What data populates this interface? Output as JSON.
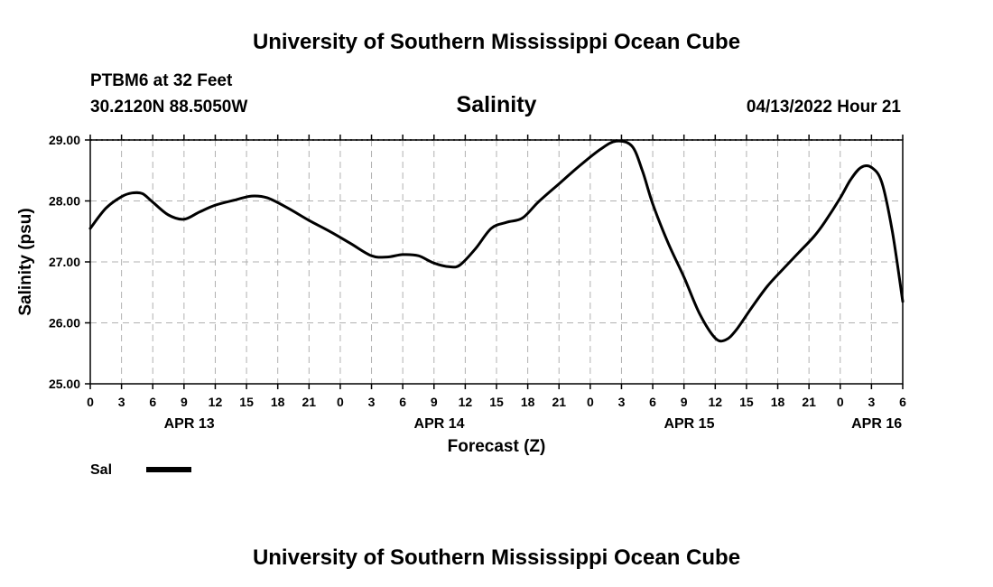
{
  "header": {
    "title": "University of Southern Mississippi Ocean Cube",
    "station": "PTBM6 at 32 Feet",
    "coords": "30.2120N  88.5050W",
    "datetime": "04/13/2022 Hour 21"
  },
  "footer": {
    "title": "University of Southern Mississippi Ocean Cube"
  },
  "legend": {
    "label": "Sal"
  },
  "colors": {
    "line": "#000000",
    "grid": "#b0b0b0",
    "axis": "#000000"
  },
  "chart_data": {
    "type": "line",
    "title": "Salinity",
    "xlabel": "Forecast (Z)",
    "ylabel": "Salinity (psu)",
    "xlim": [
      0,
      78
    ],
    "ylim": [
      25.0,
      29.0
    ],
    "grid": true,
    "legend_position": "bottom-left",
    "yticks": [
      {
        "value": 25.0,
        "label": "25.00"
      },
      {
        "value": 26.0,
        "label": "26.00"
      },
      {
        "value": 27.0,
        "label": "27.00"
      },
      {
        "value": 28.0,
        "label": "28.00"
      },
      {
        "value": 29.0,
        "label": "29.00"
      }
    ],
    "xticks": [
      {
        "value": 0,
        "label": "0"
      },
      {
        "value": 3,
        "label": "3"
      },
      {
        "value": 6,
        "label": "6"
      },
      {
        "value": 9,
        "label": "9"
      },
      {
        "value": 12,
        "label": "12"
      },
      {
        "value": 15,
        "label": "15"
      },
      {
        "value": 18,
        "label": "18"
      },
      {
        "value": 21,
        "label": "21"
      },
      {
        "value": 24,
        "label": "0"
      },
      {
        "value": 27,
        "label": "3"
      },
      {
        "value": 30,
        "label": "6"
      },
      {
        "value": 33,
        "label": "9"
      },
      {
        "value": 36,
        "label": "12"
      },
      {
        "value": 39,
        "label": "15"
      },
      {
        "value": 42,
        "label": "18"
      },
      {
        "value": 45,
        "label": "21"
      },
      {
        "value": 48,
        "label": "0"
      },
      {
        "value": 51,
        "label": "3"
      },
      {
        "value": 54,
        "label": "6"
      },
      {
        "value": 57,
        "label": "9"
      },
      {
        "value": 60,
        "label": "12"
      },
      {
        "value": 63,
        "label": "15"
      },
      {
        "value": 66,
        "label": "18"
      },
      {
        "value": 69,
        "label": "21"
      },
      {
        "value": 72,
        "label": "0"
      },
      {
        "value": 75,
        "label": "3"
      },
      {
        "value": 78,
        "label": "6"
      }
    ],
    "day_labels": [
      {
        "value": 9.5,
        "label": "APR 13"
      },
      {
        "value": 33.5,
        "label": "APR 14"
      },
      {
        "value": 57.5,
        "label": "APR 15"
      },
      {
        "value": 75.5,
        "label": "APR 16"
      }
    ],
    "series": [
      {
        "name": "Sal",
        "x": [
          0,
          1.5,
          3,
          4,
          5,
          6,
          7.5,
          9,
          10.5,
          12,
          14,
          15.5,
          17,
          19,
          21,
          23,
          25,
          27,
          28.5,
          30,
          31.5,
          33,
          34.5,
          35.5,
          37,
          38.5,
          40,
          41.5,
          43,
          45,
          47,
          49,
          50.5,
          52,
          53,
          54,
          55.5,
          57,
          58.5,
          60,
          61,
          62,
          63.5,
          65,
          66.5,
          68,
          69.5,
          70.5,
          72,
          73,
          74,
          75,
          76,
          77,
          78
        ],
        "values": [
          27.55,
          27.88,
          28.07,
          28.13,
          28.12,
          27.98,
          27.77,
          27.7,
          27.82,
          27.93,
          28.02,
          28.08,
          28.05,
          27.88,
          27.68,
          27.5,
          27.3,
          27.1,
          27.08,
          27.12,
          27.1,
          26.98,
          26.92,
          26.95,
          27.22,
          27.55,
          27.65,
          27.72,
          27.98,
          28.28,
          28.58,
          28.85,
          28.98,
          28.9,
          28.5,
          27.95,
          27.3,
          26.75,
          26.15,
          25.75,
          25.72,
          25.88,
          26.25,
          26.6,
          26.88,
          27.15,
          27.42,
          27.65,
          28.05,
          28.35,
          28.55,
          28.55,
          28.3,
          27.5,
          26.35
        ]
      }
    ]
  }
}
